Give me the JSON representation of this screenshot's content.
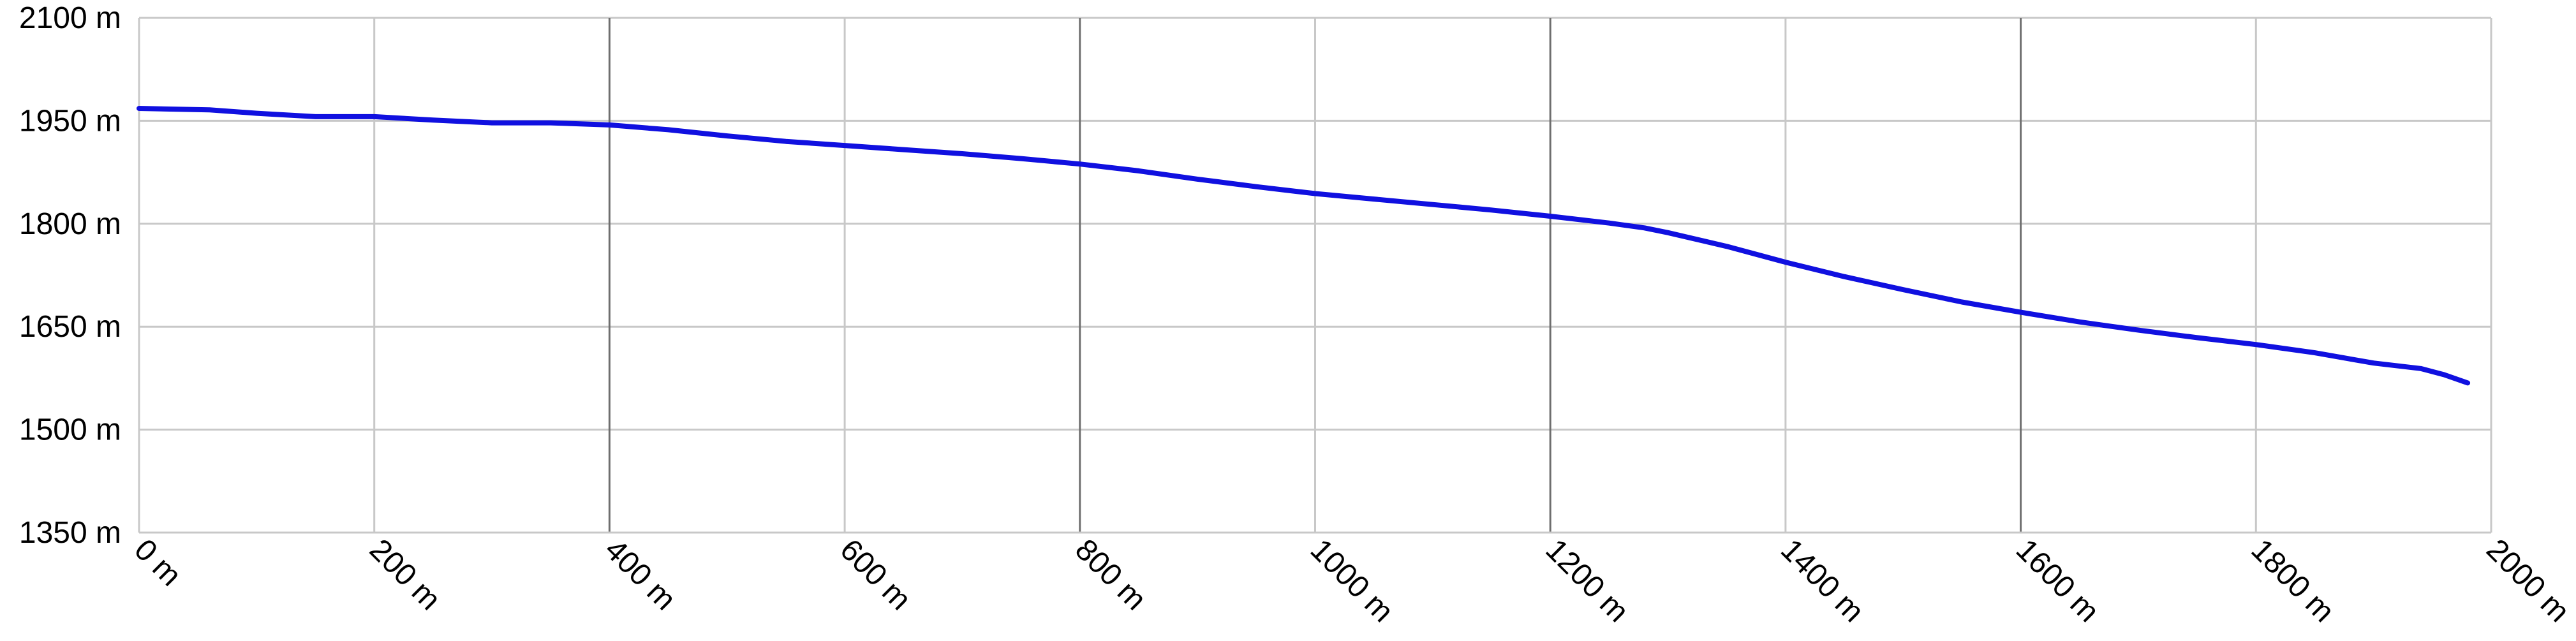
{
  "chart_data": {
    "type": "line",
    "title": "",
    "xlabel": "",
    "ylabel": "",
    "x_unit": "m",
    "y_unit": "m",
    "xlim": [
      0,
      2000
    ],
    "ylim": [
      1350,
      2100
    ],
    "x_ticks": [
      0,
      200,
      400,
      600,
      800,
      1000,
      1200,
      1400,
      1600,
      1800,
      2000
    ],
    "y_ticks": [
      1350,
      1500,
      1650,
      1800,
      1950,
      2100
    ],
    "x_tick_labels": [
      "0 m",
      "200 m",
      "400 m",
      "600 m",
      "800 m",
      "1000 m",
      "1200 m",
      "1400 m",
      "1600 m",
      "1800 m",
      "2000 m"
    ],
    "y_tick_labels": [
      "1350 m",
      "1500 m",
      "1650 m",
      "1800 m",
      "1950 m",
      "2100 m"
    ],
    "grid": true,
    "legend": "none",
    "line_color": "#1010e0",
    "grid_color": "#c8c8c8",
    "grid_dark_color": "#6e6e6e",
    "series": [
      {
        "x": [
          0,
          60,
          100,
          150,
          200,
          250,
          300,
          350,
          400,
          450,
          500,
          550,
          600,
          650,
          700,
          750,
          800,
          850,
          900,
          950,
          1000,
          1050,
          1100,
          1150,
          1200,
          1250,
          1280,
          1300,
          1350,
          1400,
          1450,
          1500,
          1550,
          1600,
          1650,
          1700,
          1750,
          1800,
          1850,
          1900,
          1940,
          1960,
          1980
        ],
        "y": [
          1968,
          1966,
          1961,
          1956,
          1956,
          1951,
          1947,
          1947,
          1944,
          1937,
          1928,
          1920,
          1914,
          1908,
          1902,
          1895,
          1887,
          1877,
          1865,
          1854,
          1844,
          1836,
          1828,
          1820,
          1811,
          1801,
          1794,
          1787,
          1767,
          1744,
          1723,
          1704,
          1686,
          1671,
          1657,
          1645,
          1634,
          1624,
          1612,
          1597,
          1589,
          1580,
          1568
        ]
      }
    ]
  }
}
